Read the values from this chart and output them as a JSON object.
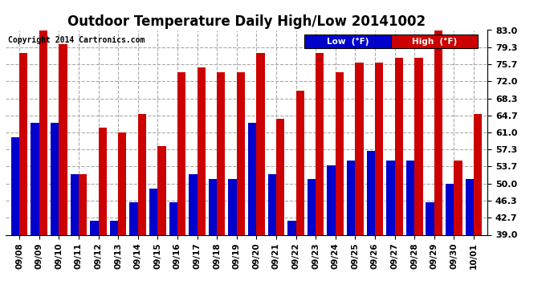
{
  "title": "Outdoor Temperature Daily High/Low 20141002",
  "copyright": "Copyright 2014 Cartronics.com",
  "legend_low": "Low  (°F)",
  "legend_high": "High  (°F)",
  "dates": [
    "09/08",
    "09/09",
    "09/10",
    "09/11",
    "09/12",
    "09/13",
    "09/14",
    "09/15",
    "09/16",
    "09/17",
    "09/18",
    "09/19",
    "09/20",
    "09/21",
    "09/22",
    "09/23",
    "09/24",
    "09/25",
    "09/26",
    "09/27",
    "09/28",
    "09/29",
    "09/30",
    "10/01"
  ],
  "high": [
    78,
    83,
    80,
    52,
    62,
    61,
    65,
    58,
    74,
    75,
    74,
    74,
    78,
    64,
    70,
    78,
    74,
    76,
    76,
    77,
    77,
    83,
    55,
    65
  ],
  "low": [
    60,
    63,
    63,
    52,
    42,
    42,
    46,
    49,
    46,
    52,
    51,
    51,
    63,
    52,
    42,
    51,
    54,
    55,
    57,
    55,
    55,
    46,
    50,
    51
  ],
  "ymin": 39.0,
  "ymax": 83.0,
  "yticks": [
    39.0,
    42.7,
    46.3,
    50.0,
    53.7,
    57.3,
    61.0,
    64.7,
    68.3,
    72.0,
    75.7,
    79.3,
    83.0
  ],
  "ytick_labels": [
    "39.0",
    "42.7",
    "46.3",
    "50.0",
    "53.7",
    "57.3",
    "61.0",
    "64.7",
    "68.3",
    "72.0",
    "75.7",
    "79.3",
    "83.0"
  ],
  "low_color": "#0000cc",
  "high_color": "#cc0000",
  "bg_color": "#ffffff",
  "grid_color": "#aaaaaa",
  "title_fontsize": 12,
  "bar_width": 0.42
}
